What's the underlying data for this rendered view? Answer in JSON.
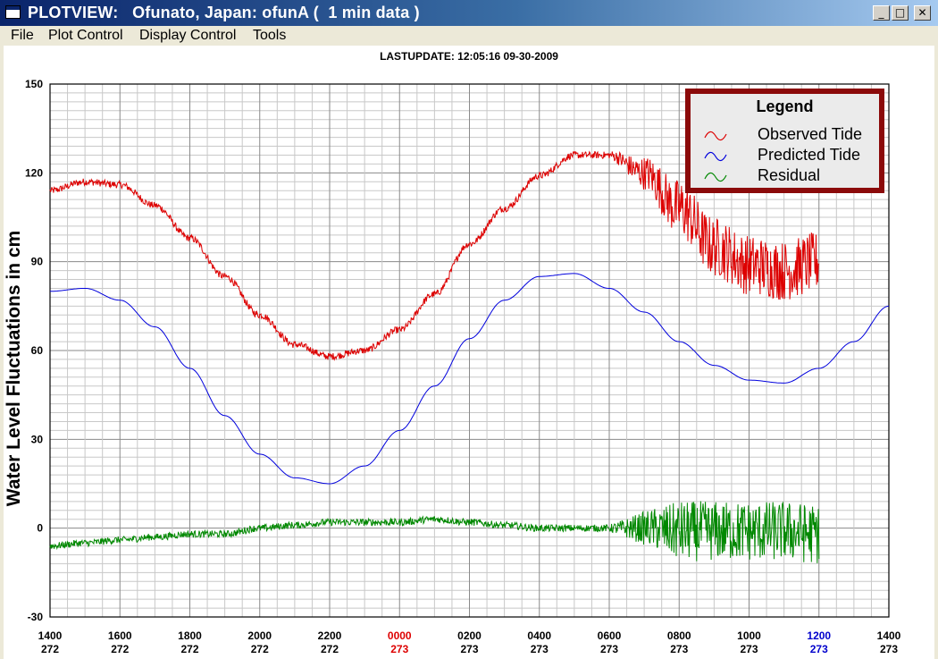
{
  "window": {
    "title": "PLOTVIEW:   Ofunato, Japan: ofunA (  1 min data )",
    "buttons": {
      "minimize": "_",
      "maximize": "□",
      "close": "✕"
    }
  },
  "menu": [
    "File",
    "Plot Control",
    "Display Control",
    "Tools"
  ],
  "lastupdate": "LASTUPDATE: 12:05:16  09-30-2009",
  "chart_data": {
    "type": "line",
    "title": "",
    "ylabel": "Water Level Fluctuations in cm",
    "xlabel": "",
    "ylim": [
      -30,
      150
    ],
    "yticks": [
      -30,
      0,
      30,
      60,
      90,
      120,
      150
    ],
    "xlim_hours": [
      0,
      24
    ],
    "x_ticks": [
      {
        "time": "1400",
        "day": "272",
        "color": "#000000"
      },
      {
        "time": "1600",
        "day": "272",
        "color": "#000000"
      },
      {
        "time": "1800",
        "day": "272",
        "color": "#000000"
      },
      {
        "time": "2000",
        "day": "272",
        "color": "#000000"
      },
      {
        "time": "2200",
        "day": "272",
        "color": "#000000"
      },
      {
        "time": "0000",
        "day": "273",
        "color": "#dd0000"
      },
      {
        "time": "0200",
        "day": "273",
        "color": "#000000"
      },
      {
        "time": "0400",
        "day": "273",
        "color": "#000000"
      },
      {
        "time": "0600",
        "day": "273",
        "color": "#000000"
      },
      {
        "time": "0800",
        "day": "273",
        "color": "#000000"
      },
      {
        "time": "1000",
        "day": "273",
        "color": "#000000"
      },
      {
        "time": "1200",
        "day": "273",
        "color": "#0000cc"
      },
      {
        "time": "1400",
        "day": "273",
        "color": "#000000"
      }
    ],
    "grid": true,
    "legend": {
      "title": "Legend",
      "placement": "top-right"
    },
    "series": [
      {
        "name": "Observed Tide",
        "color": "#dd0000",
        "x": [
          "1400",
          "1500",
          "1600",
          "1700",
          "1800",
          "1900",
          "2000",
          "2100",
          "2200",
          "2300",
          "0000",
          "0100",
          "0200",
          "0300",
          "0400",
          "0500",
          "0600",
          "0700",
          "0800",
          "0900",
          "1000",
          "1100",
          "1200"
        ],
        "values": [
          114,
          117,
          116,
          109,
          98,
          85,
          72,
          62,
          58,
          60,
          67,
          79,
          96,
          108,
          119,
          126,
          126,
          120,
          108,
          95,
          89,
          87,
          90
        ],
        "noise_from": "0600",
        "noise_amplitude": 9
      },
      {
        "name": "Predicted Tide",
        "color": "#0000dd",
        "x": [
          "1400",
          "1500",
          "1600",
          "1700",
          "1800",
          "1900",
          "2000",
          "2100",
          "2200",
          "2300",
          "0000",
          "0100",
          "0200",
          "0300",
          "0400",
          "0500",
          "0600",
          "0700",
          "0800",
          "0900",
          "1000",
          "1100",
          "1200",
          "1300",
          "1400"
        ],
        "values": [
          80,
          81,
          77,
          68,
          54,
          38,
          25,
          17,
          15,
          21,
          33,
          48,
          64,
          77,
          85,
          86,
          81,
          73,
          63,
          55,
          50,
          49,
          54,
          63,
          75
        ]
      },
      {
        "name": "Residual",
        "color": "#008800",
        "x": [
          "1400",
          "1500",
          "1600",
          "1700",
          "1800",
          "1900",
          "2000",
          "2100",
          "2200",
          "2300",
          "0000",
          "0100",
          "0200",
          "0300",
          "0400",
          "0500",
          "0600",
          "0700",
          "0800",
          "0900",
          "1000",
          "1100",
          "1200"
        ],
        "values": [
          -6,
          -5,
          -4,
          -3,
          -2,
          -2,
          0,
          1,
          2,
          2,
          2,
          3,
          2,
          1,
          0,
          0,
          0,
          0,
          -1,
          -1,
          -1,
          -1,
          -2
        ],
        "noise_from": "0600",
        "noise_amplitude": 9
      }
    ]
  }
}
